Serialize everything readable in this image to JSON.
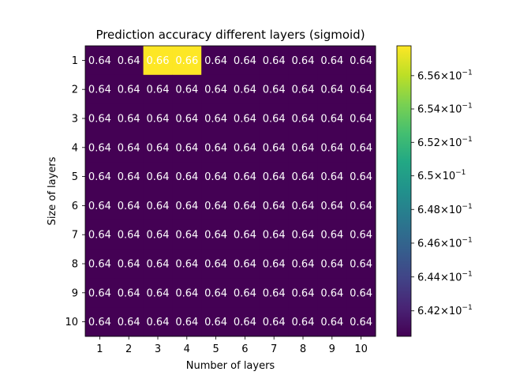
{
  "chart_data": {
    "type": "heatmap",
    "title": "Prediction accuracy different layers (sigmoid)",
    "xlabel": "Number of layers",
    "ylabel": "Size of layers",
    "x_categories": [
      "1",
      "2",
      "3",
      "4",
      "5",
      "6",
      "7",
      "8",
      "9",
      "10"
    ],
    "y_categories": [
      "1",
      "2",
      "3",
      "4",
      "5",
      "6",
      "7",
      "8",
      "9",
      "10"
    ],
    "values": [
      [
        0.6405,
        0.6405,
        0.6578,
        0.6578,
        0.6405,
        0.6405,
        0.6405,
        0.6405,
        0.6405,
        0.6405
      ],
      [
        0.6405,
        0.6405,
        0.6405,
        0.6405,
        0.6405,
        0.6405,
        0.6405,
        0.6405,
        0.6405,
        0.6405
      ],
      [
        0.6405,
        0.6405,
        0.6405,
        0.6405,
        0.6405,
        0.6405,
        0.6405,
        0.6405,
        0.6405,
        0.6405
      ],
      [
        0.6405,
        0.6405,
        0.6405,
        0.6405,
        0.6405,
        0.6405,
        0.6405,
        0.6405,
        0.6405,
        0.6405
      ],
      [
        0.6405,
        0.6405,
        0.6405,
        0.6405,
        0.6405,
        0.6405,
        0.6405,
        0.6405,
        0.6405,
        0.6405
      ],
      [
        0.6405,
        0.6405,
        0.6405,
        0.6405,
        0.6405,
        0.6405,
        0.6405,
        0.6405,
        0.6405,
        0.6405
      ],
      [
        0.6405,
        0.6405,
        0.6405,
        0.6405,
        0.6405,
        0.6405,
        0.6405,
        0.6405,
        0.6405,
        0.6405
      ],
      [
        0.6405,
        0.6405,
        0.6405,
        0.6405,
        0.6405,
        0.6405,
        0.6405,
        0.6405,
        0.6405,
        0.6405
      ],
      [
        0.6405,
        0.6405,
        0.6405,
        0.6405,
        0.6405,
        0.6405,
        0.6405,
        0.6405,
        0.6405,
        0.6405
      ],
      [
        0.6405,
        0.6405,
        0.6405,
        0.6405,
        0.6405,
        0.6405,
        0.6405,
        0.6405,
        0.6405,
        0.6405
      ]
    ],
    "cell_labels": [
      [
        "0.64",
        "0.64",
        "0.66",
        "0.66",
        "0.64",
        "0.64",
        "0.64",
        "0.64",
        "0.64",
        "0.64"
      ],
      [
        "0.64",
        "0.64",
        "0.64",
        "0.64",
        "0.64",
        "0.64",
        "0.64",
        "0.64",
        "0.64",
        "0.64"
      ],
      [
        "0.64",
        "0.64",
        "0.64",
        "0.64",
        "0.64",
        "0.64",
        "0.64",
        "0.64",
        "0.64",
        "0.64"
      ],
      [
        "0.64",
        "0.64",
        "0.64",
        "0.64",
        "0.64",
        "0.64",
        "0.64",
        "0.64",
        "0.64",
        "0.64"
      ],
      [
        "0.64",
        "0.64",
        "0.64",
        "0.64",
        "0.64",
        "0.64",
        "0.64",
        "0.64",
        "0.64",
        "0.64"
      ],
      [
        "0.64",
        "0.64",
        "0.64",
        "0.64",
        "0.64",
        "0.64",
        "0.64",
        "0.64",
        "0.64",
        "0.64"
      ],
      [
        "0.64",
        "0.64",
        "0.64",
        "0.64",
        "0.64",
        "0.64",
        "0.64",
        "0.64",
        "0.64",
        "0.64"
      ],
      [
        "0.64",
        "0.64",
        "0.64",
        "0.64",
        "0.64",
        "0.64",
        "0.64",
        "0.64",
        "0.64",
        "0.64"
      ],
      [
        "0.64",
        "0.64",
        "0.64",
        "0.64",
        "0.64",
        "0.64",
        "0.64",
        "0.64",
        "0.64",
        "0.64"
      ],
      [
        "0.64",
        "0.64",
        "0.64",
        "0.64",
        "0.64",
        "0.64",
        "0.64",
        "0.64",
        "0.64",
        "0.64"
      ]
    ],
    "colorbar": {
      "scale": "log",
      "range": [
        0.6405,
        0.6578
      ],
      "colormap": "viridis",
      "colormap_low": "#440154",
      "colormap_high": "#fde725",
      "ticks": [
        {
          "value": 0.642,
          "mantissa": "6.42"
        },
        {
          "value": 0.644,
          "mantissa": "6.44"
        },
        {
          "value": 0.646,
          "mantissa": "6.46"
        },
        {
          "value": 0.648,
          "mantissa": "6.48"
        },
        {
          "value": 0.65,
          "mantissa": "6.5"
        },
        {
          "value": 0.652,
          "mantissa": "6.52"
        },
        {
          "value": 0.654,
          "mantissa": "6.54"
        },
        {
          "value": 0.656,
          "mantissa": "6.56"
        }
      ],
      "tick_multiplier": "×",
      "tick_base": "10",
      "tick_exponent": "−1"
    },
    "grid": false,
    "legend": "colorbar-right"
  }
}
